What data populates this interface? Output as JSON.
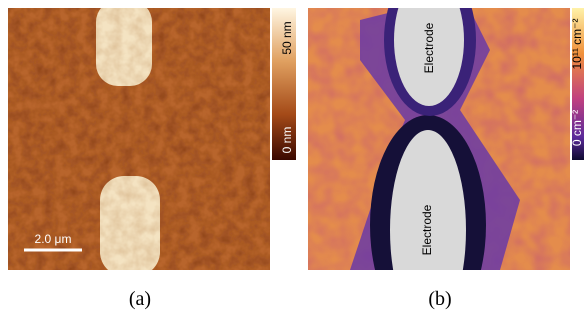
{
  "panel_a": {
    "colorbar_top": "50 nm",
    "colorbar_bottom": "0 nm",
    "scale_bar": "2.0 μm",
    "caption": "(a)"
  },
  "panel_b": {
    "colorbar_top": "10¹¹ cm⁻²",
    "colorbar_bottom": "0 cm⁻²",
    "electrode_top": "Electrode",
    "electrode_bottom": "Electrode",
    "caption": "(b)"
  }
}
